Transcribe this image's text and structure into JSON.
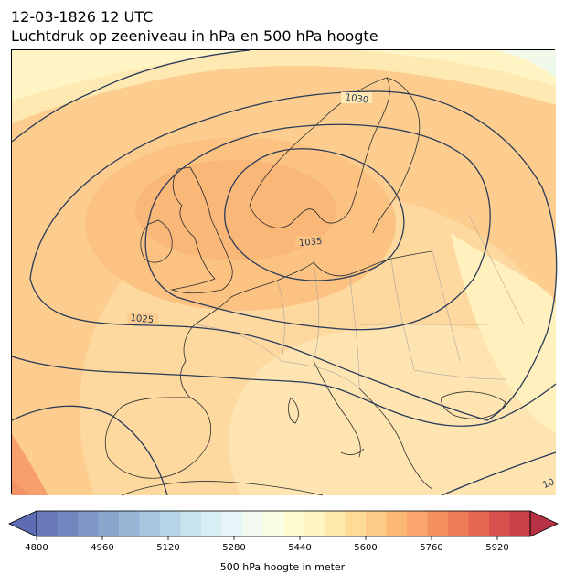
{
  "header": {
    "line1": "12-03-1826 12 UTC",
    "line2": "Luchtdruk op zeeniveau in hPa en 500 hPa hoogte"
  },
  "map": {
    "region": "Europe / North Atlantic",
    "isobars": [
      {
        "value": "1035"
      },
      {
        "value": "1030"
      },
      {
        "value": "1025"
      },
      {
        "value": "10"
      }
    ],
    "colors": {
      "coastline": "#2b2b2b",
      "borders": "#9a9a9a",
      "isobar": "#2a3a58"
    }
  },
  "colorbar": {
    "label": "500 hPa hoogte in meter",
    "min": 4800,
    "max": 6000,
    "step": 40,
    "ticks": [
      4800,
      4960,
      5120,
      5280,
      5440,
      5600,
      5760,
      5920
    ],
    "extend": "both",
    "colors": [
      "#5e6cb2",
      "#6878b8",
      "#7386bf",
      "#7f96c6",
      "#8aa6cd",
      "#97b5d5",
      "#a6c5de",
      "#b6d5e6",
      "#c6e3ee",
      "#d7eef4",
      "#e6f5f7",
      "#f1f9f0",
      "#fafce3",
      "#fffbd1",
      "#fff5c0",
      "#fee9ab",
      "#fedc97",
      "#fdcb85",
      "#fbb877",
      "#f9a56b",
      "#f5905f",
      "#ef7b56",
      "#e5664f",
      "#d7524c",
      "#c94049",
      "#b83245"
    ]
  }
}
